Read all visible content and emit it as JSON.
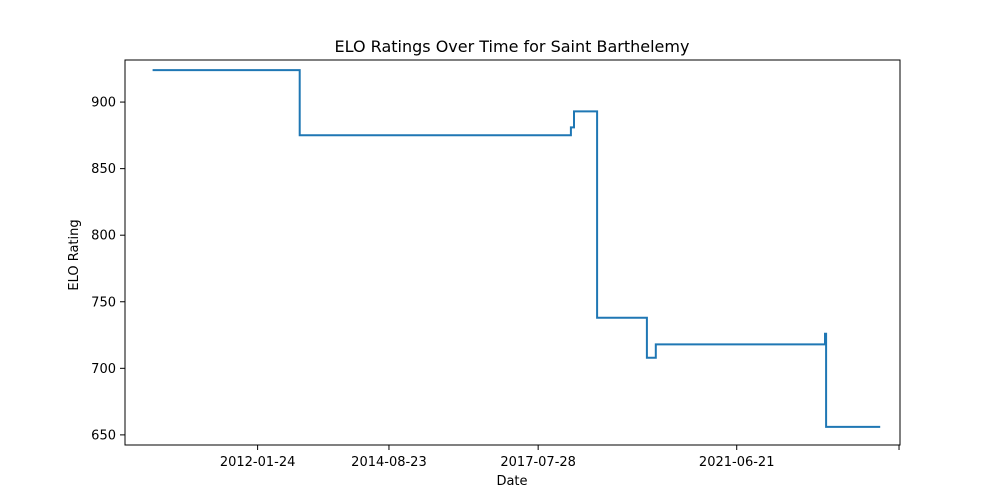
{
  "chart_data": {
    "type": "line",
    "title": "ELO Ratings Over Time for Saint Barthelemy",
    "xlabel": "Date",
    "ylabel": "ELO Rating",
    "x_ticks": [
      "2012-01-24",
      "2014-08-23",
      "2017-07-28",
      "2021-06-21"
    ],
    "x_ticks_unlabeled": [
      "2024-08-28"
    ],
    "y_ticks": [
      650,
      700,
      750,
      800,
      850,
      900
    ],
    "xlim": [
      "2009-06-17",
      "2024-09-04"
    ],
    "ylim": [
      642.4,
      931.6
    ],
    "grid": false,
    "series": [
      {
        "color": "#1f77b4",
        "step": "post",
        "points": [
          {
            "x": "2010-01-01",
            "y": 924
          },
          {
            "x": "2012-11-21",
            "y": 875
          },
          {
            "x": "2018-03-20",
            "y": 881
          },
          {
            "x": "2018-04-11",
            "y": 893
          },
          {
            "x": "2018-09-24",
            "y": 738
          },
          {
            "x": "2019-09-16",
            "y": 708
          },
          {
            "x": "2019-11-19",
            "y": 718
          },
          {
            "x": "2023-03-16",
            "y": 726
          },
          {
            "x": "2023-03-24",
            "y": 656
          },
          {
            "x": "2024-04-15",
            "y": 656
          }
        ]
      }
    ]
  }
}
